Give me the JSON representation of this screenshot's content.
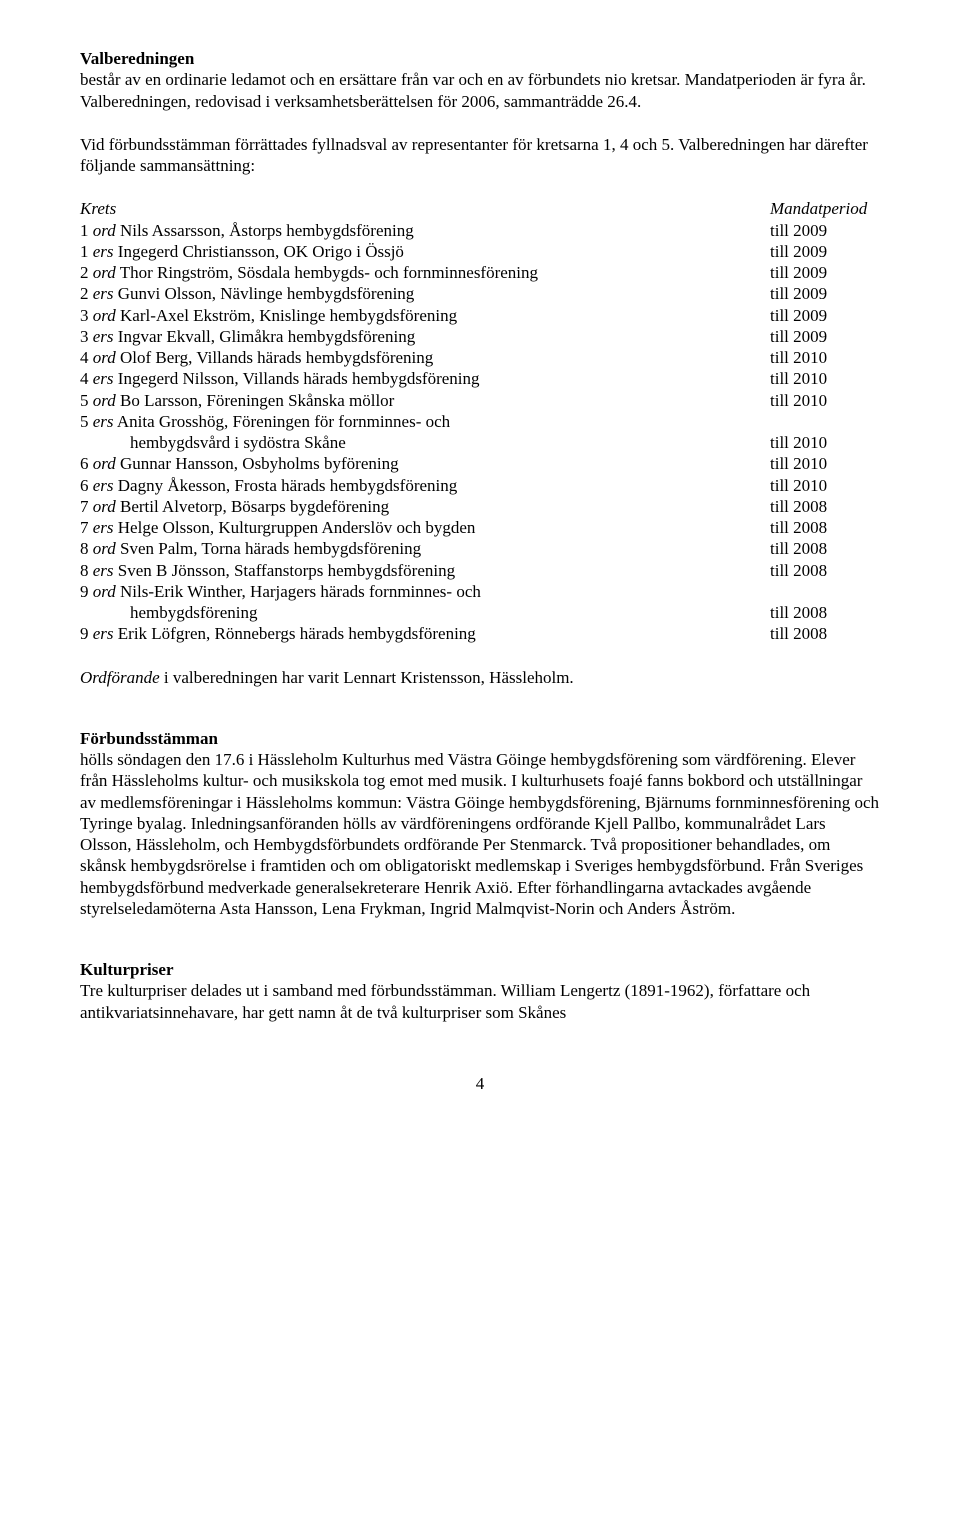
{
  "sec1": {
    "heading": "Valberedningen",
    "p1": "består av en ordinarie ledamot och en ersättare från var och en av förbundets nio kretsar. Mandatperioden är fyra år. Valberedningen, redovisad i verksamhetsberättelsen för 2006, sammanträdde 26.4.",
    "p2": "Vid förbundsstämman förrättades fyllnadsval av representanter för kretsarna 1, 4 och 5. Valberedningen har därefter följande sammansättning:"
  },
  "table": {
    "head": {
      "left": "Krets",
      "right": "Mandatperiod"
    },
    "rows": [
      {
        "prefix": "1 ",
        "ordErs": "ord",
        "name": " Nils Assarsson, Åstorps hembygdsförening",
        "year": "till 2009"
      },
      {
        "prefix": "1 ",
        "ordErs": "ers",
        "name": " Ingegerd Christiansson, OK Origo i Össjö",
        "year": "till 2009"
      },
      {
        "prefix": "2 ",
        "ordErs": "ord",
        "name": " Thor Ringström, Sösdala hembygds- och fornminnesförening",
        "year": "till 2009"
      },
      {
        "prefix": "2 ",
        "ordErs": "ers",
        "name": " Gunvi Olsson, Nävlinge hembygdsförening",
        "year": "till 2009"
      },
      {
        "prefix": "3 ",
        "ordErs": "ord",
        "name": " Karl-Axel Ekström, Knislinge hembygdsförening",
        "year": "till 2009"
      },
      {
        "prefix": "3 ",
        "ordErs": "ers",
        "name": " Ingvar Ekvall, Glimåkra hembygdsförening",
        "year": "till 2009"
      },
      {
        "prefix": "4 ",
        "ordErs": "ord",
        "name": " Olof Berg, Villands härads hembygdsförening",
        "year": "till 2010"
      },
      {
        "prefix": "4 ",
        "ordErs": "ers",
        "name": " Ingegerd Nilsson, Villands härads hembygdsförening",
        "year": "till 2010"
      },
      {
        "prefix": "5 ",
        "ordErs": "ord",
        "name": " Bo Larsson, Föreningen Skånska möllor",
        "year": "till 2010"
      },
      {
        "prefix": "5 ",
        "ordErs": "ers",
        "name": " Anita Grosshög, Föreningen för fornminnes- och",
        "year": ""
      },
      {
        "prefix": "",
        "ordErs": "",
        "name": "hembygdsvård i sydöstra Skåne",
        "indent": true,
        "year": "till 2010"
      },
      {
        "prefix": "6 ",
        "ordErs": "ord",
        "name": " Gunnar Hansson, Osbyholms byförening",
        "year": "till 2010"
      },
      {
        "prefix": "6 ",
        "ordErs": "ers",
        "name": " Dagny Åkesson, Frosta härads hembygdsförening",
        "year": "till 2010"
      },
      {
        "prefix": "7 ",
        "ordErs": "ord",
        "name": " Bertil Alvetorp, Bösarps bygdeförening",
        "year": "till 2008"
      },
      {
        "prefix": "7 ",
        "ordErs": "ers",
        "name": " Helge Olsson, Kulturgruppen Anderslöv och bygden",
        "year": "till 2008"
      },
      {
        "prefix": "8 ",
        "ordErs": "ord",
        "name": " Sven Palm, Torna härads hembygdsförening",
        "year": "till 2008"
      },
      {
        "prefix": "8 ",
        "ordErs": "ers",
        "name": " Sven B Jönsson, Staffanstorps hembygdsförening",
        "year": "till 2008"
      },
      {
        "prefix": "9 ",
        "ordErs": "ord",
        "name": " Nils-Erik Winther, Harjagers härads fornminnes- och",
        "year": ""
      },
      {
        "prefix": "",
        "ordErs": "",
        "name": "hembygdsförening",
        "indent": true,
        "year": "till 2008"
      },
      {
        "prefix": "9 ",
        "ordErs": "ers",
        "name": " Erik Löfgren, Rönnebergs härads hembygdsförening",
        "year": "till 2008"
      }
    ]
  },
  "ordfLine": {
    "italic": "Ordförande",
    "rest": " i valberedningen har varit Lennart Kristensson, Hässleholm."
  },
  "sec2": {
    "heading": "Förbundsstämman",
    "body": "hölls söndagen den 17.6 i Hässleholm Kulturhus med Västra Göinge hembygdsförening som värdförening. Elever från Hässleholms kultur- och musikskola tog emot med musik. I kulturhusets foajé fanns bokbord och utställningar av medlemsföreningar i Hässleholms kommun: Västra Göinge hembygdsförening, Bjärnums fornminnesförening och Tyringe byalag. Inledningsanföranden hölls av värdföreningens ordförande Kjell Pallbo, kommunalrådet Lars Olsson, Hässleholm, och Hembygdsförbundets ordförande Per Stenmarck. Två propositioner behandlades, om skånsk hembygdsrörelse i framtiden och om obligatoriskt medlemskap i Sveriges hembygdsförbund. Från Sveriges hembygdsförbund medverkade generalsekreterare Henrik Axiö. Efter förhandlingarna avtackades avgående styrelseledamöterna Asta Hansson, Lena Frykman, Ingrid Malmqvist-Norin och Anders Åström."
  },
  "sec3": {
    "heading": "Kulturpriser",
    "body": "Tre kulturpriser delades ut i samband med förbundsstämman. William Lengertz (1891-1962), författare och antikvariatsinnehavare, har gett namn åt de två kulturpriser som Skånes"
  },
  "pageNumber": "4"
}
